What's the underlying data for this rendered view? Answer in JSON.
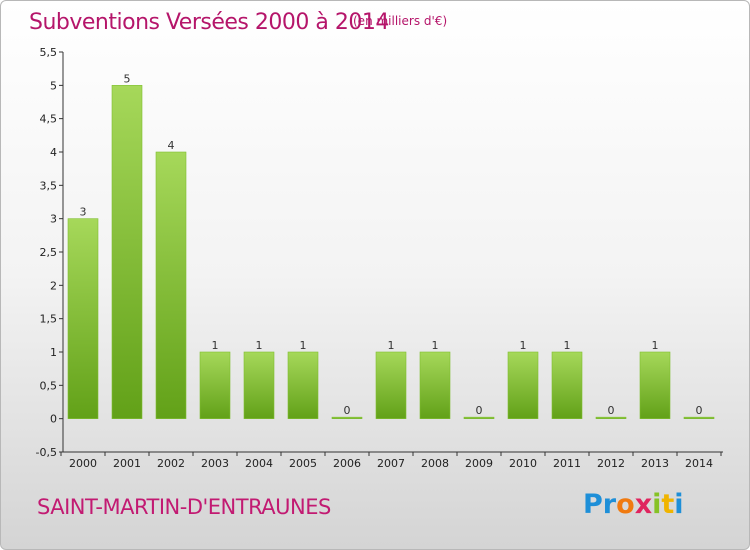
{
  "header": {
    "title": "Subventions Versées 2000 à 2014",
    "unit": "(en milliers d'€)"
  },
  "footer": {
    "commune": "SAINT-MARTIN-D'ENTRAUNES",
    "logo": [
      "P",
      "r",
      "o",
      "x",
      "i",
      "t",
      "i"
    ],
    "logo_colors": [
      "#1e8fd8",
      "#1e8fd8",
      "#f07a10",
      "#e0245e",
      "#86c226",
      "#f0b400",
      "#1e8fd8"
    ]
  },
  "colors": {
    "bar_top": "#a6d85a",
    "bar_bottom": "#62a118",
    "title": "#b5156a"
  },
  "chart_data": {
    "type": "bar",
    "title": "Subventions Versées 2000 à 2014",
    "categories": [
      "2000",
      "2001",
      "2002",
      "2003",
      "2004",
      "2005",
      "2006",
      "2007",
      "2008",
      "2009",
      "2010",
      "2011",
      "2012",
      "2013",
      "2014"
    ],
    "values": [
      3,
      5,
      4,
      1,
      1,
      1,
      0,
      1,
      1,
      0,
      1,
      1,
      0,
      1,
      0
    ],
    "data_labels": [
      "3",
      "5",
      "4",
      "1",
      "1",
      "1",
      "0",
      "1",
      "1",
      "0",
      "1",
      "1",
      "0",
      "1",
      "0"
    ],
    "ylim": [
      -0.5,
      5.5
    ],
    "yticks": [
      -0.5,
      0,
      0.5,
      1,
      1.5,
      2,
      2.5,
      3,
      3.5,
      4,
      4.5,
      5,
      5.5
    ],
    "ytick_labels": [
      "-0,5",
      "0",
      "0,5",
      "1",
      "1,5",
      "2",
      "2,5",
      "3",
      "3,5",
      "4",
      "4,5",
      "5",
      "5,5"
    ],
    "grid": false,
    "legend": "none"
  }
}
